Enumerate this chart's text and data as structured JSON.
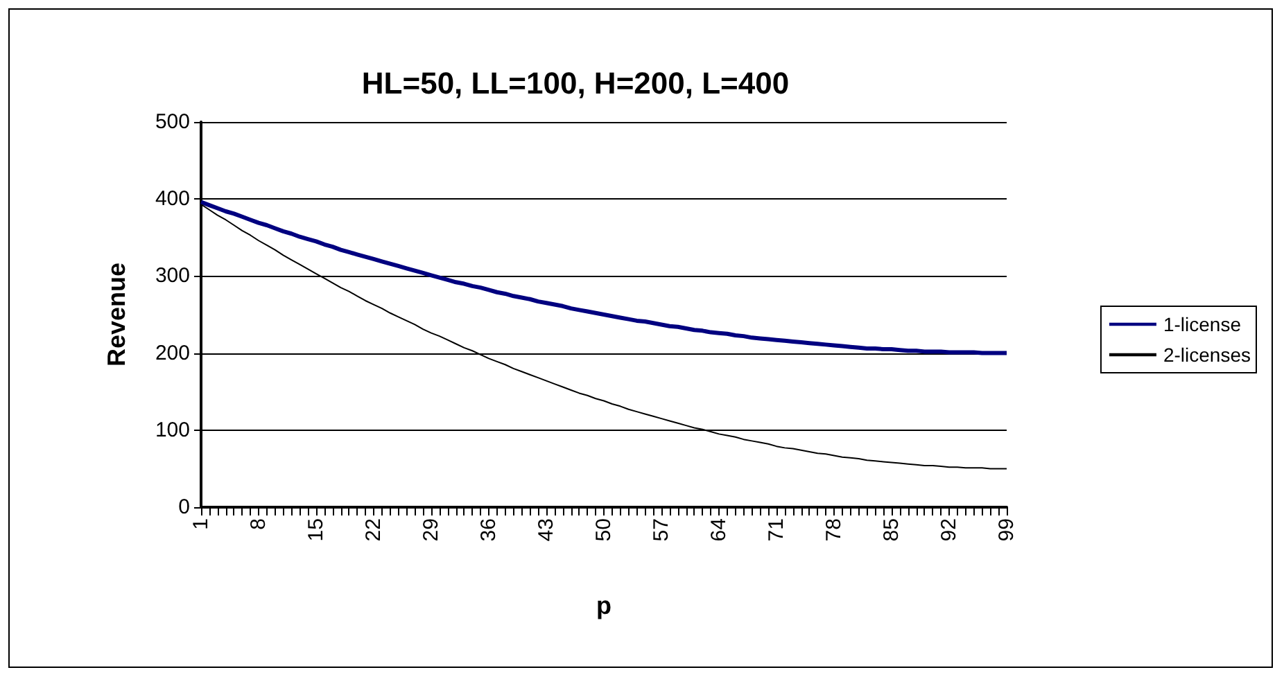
{
  "chart_data": {
    "type": "line",
    "title": "HL=50, LL=100, H=200, L=400",
    "xlabel": "p",
    "ylabel": "Revenue",
    "categories": [
      "1",
      null,
      null,
      null,
      null,
      null,
      null,
      "8",
      null,
      null,
      null,
      null,
      null,
      null,
      "15",
      null,
      null,
      null,
      null,
      null,
      null,
      "22",
      null,
      null,
      null,
      null,
      null,
      null,
      "29",
      null,
      null,
      null,
      null,
      null,
      null,
      "36",
      null,
      null,
      null,
      null,
      null,
      null,
      "43",
      null,
      null,
      null,
      null,
      null,
      null,
      "50",
      null,
      null,
      null,
      null,
      null,
      null,
      "57",
      null,
      null,
      null,
      null,
      null,
      null,
      "64",
      null,
      null,
      null,
      null,
      null,
      null,
      "71",
      null,
      null,
      null,
      null,
      null,
      null,
      "78",
      null,
      null,
      null,
      null,
      null,
      null,
      "85",
      null,
      null,
      null,
      null,
      null,
      null,
      "92",
      null,
      null,
      null,
      null,
      null,
      null,
      "99"
    ],
    "series": [
      {
        "name": "1-license",
        "color": "#000080",
        "values": [
          396,
          392,
          388,
          384,
          381,
          377,
          373,
          369,
          366,
          362,
          358,
          355,
          351,
          348,
          345,
          341,
          338,
          334,
          331,
          328,
          325,
          322,
          319,
          316,
          313,
          310,
          307,
          304,
          301,
          298,
          295,
          292,
          290,
          287,
          285,
          282,
          279,
          277,
          274,
          272,
          270,
          267,
          265,
          263,
          261,
          258,
          256,
          254,
          252,
          250,
          248,
          246,
          244,
          242,
          241,
          239,
          237,
          235,
          234,
          232,
          230,
          229,
          227,
          226,
          225,
          223,
          222,
          220,
          219,
          218,
          217,
          216,
          215,
          214,
          213,
          212,
          211,
          210,
          209,
          208,
          207,
          206,
          206,
          205,
          205,
          204,
          203,
          203,
          202,
          202,
          202,
          201,
          201,
          201,
          201,
          200,
          200,
          200,
          200
        ]
      },
      {
        "name": "2-licenses",
        "color": "#000000",
        "values": [
          393,
          386,
          379,
          373,
          366,
          359,
          353,
          346,
          340,
          334,
          327,
          321,
          315,
          309,
          303,
          297,
          291,
          285,
          280,
          274,
          268,
          263,
          258,
          252,
          247,
          242,
          237,
          231,
          226,
          222,
          217,
          212,
          207,
          203,
          198,
          193,
          189,
          185,
          180,
          176,
          172,
          168,
          164,
          160,
          156,
          152,
          148,
          145,
          141,
          138,
          134,
          131,
          127,
          124,
          121,
          118,
          115,
          112,
          109,
          106,
          103,
          101,
          98,
          95,
          93,
          91,
          88,
          86,
          84,
          82,
          79,
          77,
          76,
          74,
          72,
          70,
          69,
          67,
          65,
          64,
          63,
          61,
          60,
          59,
          58,
          57,
          56,
          55,
          54,
          54,
          53,
          52,
          52,
          51,
          51,
          51,
          50,
          50,
          50
        ]
      }
    ],
    "ylim": [
      0,
      500
    ],
    "yticks": [
      0,
      100,
      200,
      300,
      400,
      500
    ],
    "grid": "y",
    "legend": "right",
    "marker": "none",
    "line_style": "solid"
  }
}
